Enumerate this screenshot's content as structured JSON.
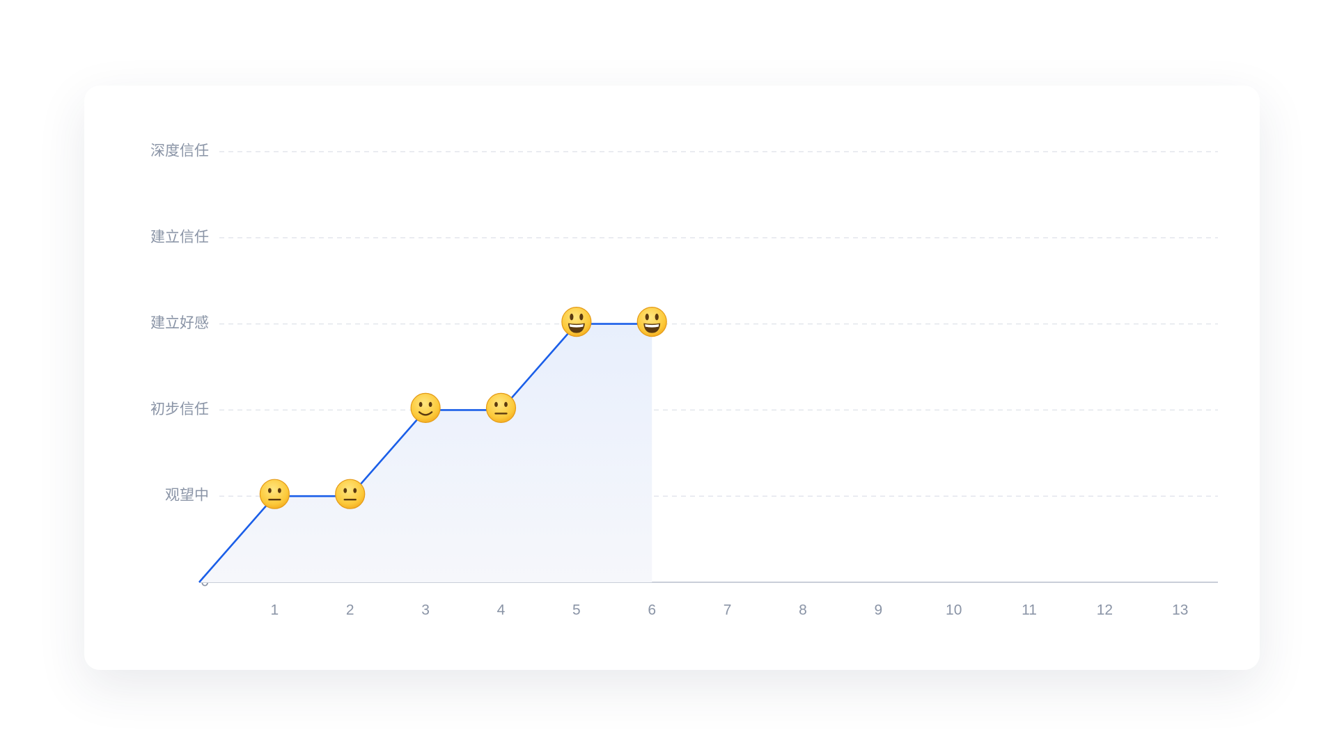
{
  "chart_data": {
    "type": "line",
    "x": [
      0,
      1,
      2,
      3,
      4,
      5,
      6
    ],
    "series": [
      {
        "color": "#1a5ee8",
        "values": [
          0,
          1,
          1,
          2,
          2,
          3,
          3
        ],
        "markers": [
          null,
          "😐",
          "😐",
          "🙂",
          "😐",
          "😃",
          "😃"
        ]
      }
    ],
    "xlim": [
      0,
      13.5
    ],
    "xticks": [
      1,
      2,
      3,
      4,
      5,
      6,
      7,
      8,
      9,
      10,
      11,
      12,
      13
    ],
    "ylim": [
      0,
      5
    ],
    "yticks": [
      0,
      {
        "value": 1,
        "label": "观望中"
      },
      {
        "value": 2,
        "label": "初步信任"
      },
      {
        "value": 3,
        "label": "建立好感"
      },
      {
        "value": 4,
        "label": "建立信任"
      },
      {
        "value": 5,
        "label": "深度信任"
      }
    ],
    "grid": true,
    "fill": true
  }
}
